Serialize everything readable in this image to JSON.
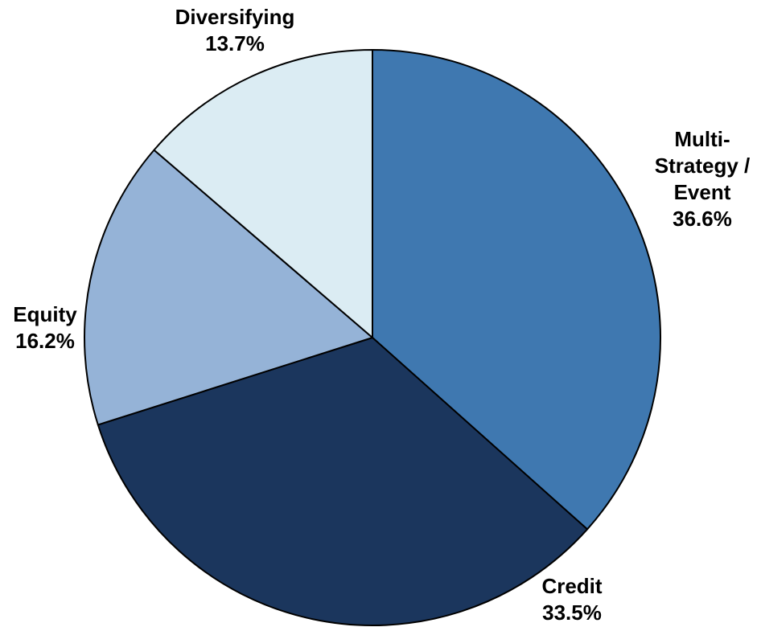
{
  "chart_data": {
    "type": "pie",
    "start_angle_deg": 0,
    "direction": "clockwise",
    "slices": [
      {
        "label_lines": [
          "Multi-",
          "Strategy /",
          "Event"
        ],
        "value": 36.6,
        "value_label": "36.6%",
        "color": "#3f78b0"
      },
      {
        "label_lines": [
          "Credit"
        ],
        "value": 33.5,
        "value_label": "33.5%",
        "color": "#1b365d"
      },
      {
        "label_lines": [
          "Equity"
        ],
        "value": 16.2,
        "value_label": "16.2%",
        "color": "#95b3d7"
      },
      {
        "label_lines": [
          "Diversifying"
        ],
        "value": 13.7,
        "value_label": "13.7%",
        "color": "#dbecf3"
      }
    ]
  }
}
